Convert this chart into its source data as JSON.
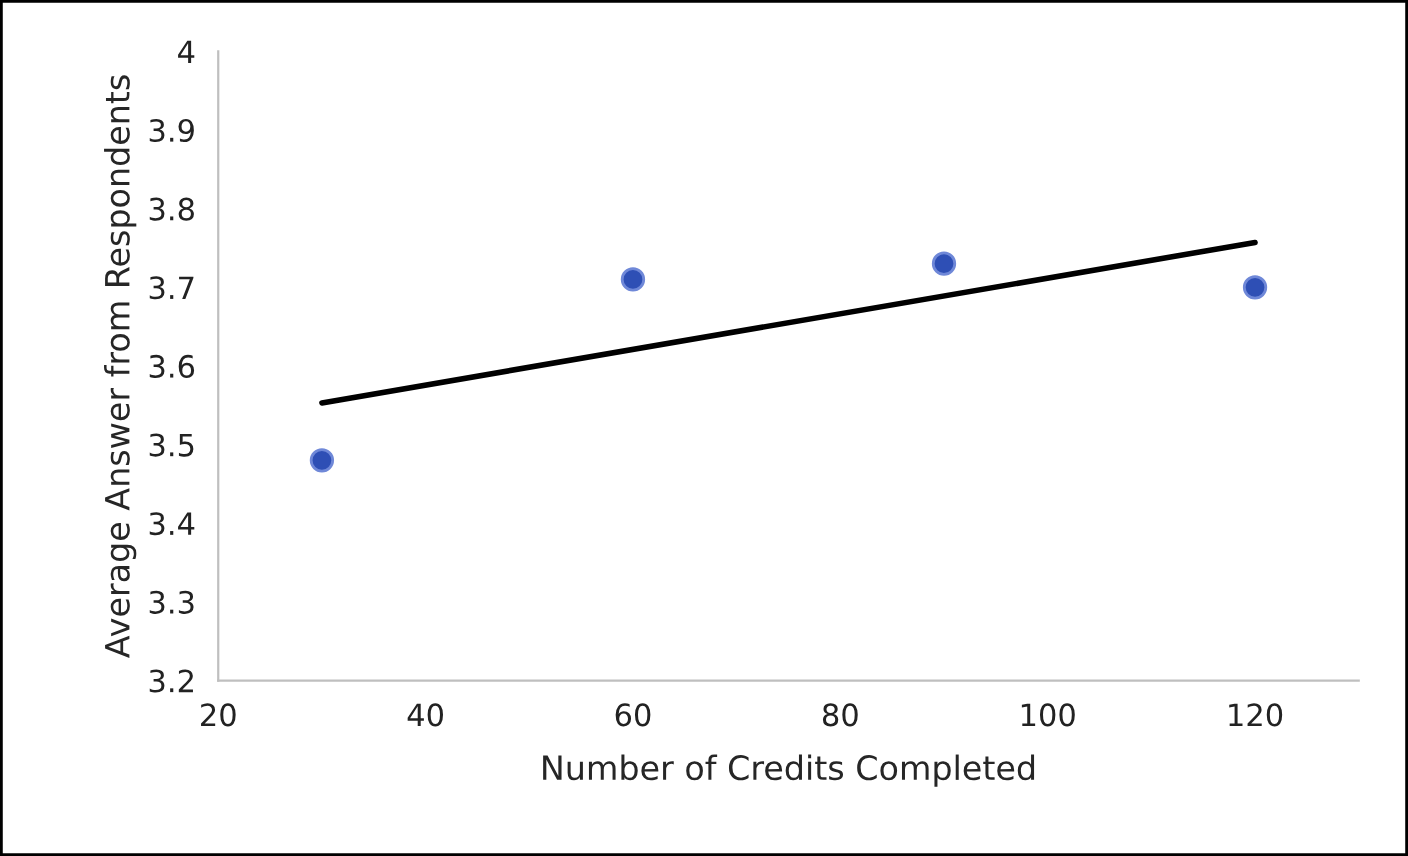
{
  "chart_data": {
    "type": "scatter",
    "xlabel": "Number of Credits Completed",
    "ylabel": "Average Answer from Respondents",
    "series": [
      {
        "color": "#2e4fb5",
        "marker": "circle",
        "x": [
          30,
          60,
          90,
          120
        ],
        "values": [
          3.48,
          3.71,
          3.73,
          3.7
        ]
      },
      {
        "type": "line",
        "color": "#000000",
        "x": [
          30,
          120
        ],
        "values": [
          3.553,
          3.757
        ]
      }
    ],
    "xlim": [
      20,
      130
    ],
    "xticks": [
      20,
      40,
      60,
      80,
      100,
      120
    ],
    "ylim": [
      3.2,
      4
    ],
    "yticks": [
      3.2,
      3.3,
      3.4,
      3.5,
      3.6,
      3.7,
      3.8,
      3.9,
      4
    ],
    "grid": false
  }
}
